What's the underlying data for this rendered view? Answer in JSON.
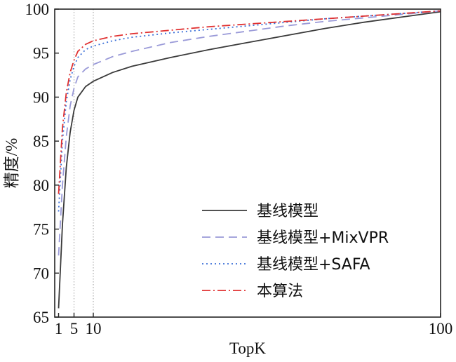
{
  "chart_data": {
    "type": "line",
    "xlabel": "TopK",
    "ylabel": "精度/%",
    "xlim": [
      0,
      100
    ],
    "ylim": [
      65,
      100
    ],
    "xticks": [
      1,
      5,
      10,
      100
    ],
    "yticks": [
      65,
      70,
      75,
      80,
      85,
      90,
      95,
      100
    ],
    "vlines": [
      5,
      10
    ],
    "grid": false,
    "legend_position": "bottom-right",
    "x": [
      1,
      2,
      3,
      4,
      5,
      6,
      8,
      10,
      15,
      20,
      30,
      40,
      50,
      60,
      70,
      80,
      90,
      100
    ],
    "series": [
      {
        "name": "基线模型",
        "color": "#3a3a3a",
        "dash": "solid",
        "values": [
          66.0,
          75.5,
          82.0,
          86.0,
          88.5,
          90.0,
          91.2,
          91.8,
          92.8,
          93.5,
          94.5,
          95.4,
          96.2,
          97.0,
          97.8,
          98.5,
          99.1,
          99.7
        ]
      },
      {
        "name": "基线模型+MixVPR",
        "color": "#9a9ad8",
        "dash": "dashed",
        "values": [
          72.0,
          80.0,
          85.5,
          89.0,
          91.0,
          92.3,
          93.2,
          93.7,
          94.6,
          95.2,
          96.2,
          96.9,
          97.5,
          98.1,
          98.6,
          99.0,
          99.4,
          99.8
        ]
      },
      {
        "name": "基线模型+SAFA",
        "color": "#3a6fd8",
        "dash": "dotted",
        "values": [
          77.0,
          85.0,
          89.5,
          92.0,
          93.5,
          94.5,
          95.4,
          95.8,
          96.4,
          96.8,
          97.3,
          97.7,
          98.1,
          98.5,
          98.9,
          99.2,
          99.5,
          99.8
        ]
      },
      {
        "name": "本算法",
        "color": "#e03030",
        "dash": "dashdot",
        "values": [
          79.0,
          86.5,
          90.5,
          92.8,
          94.2,
          95.2,
          96.0,
          96.4,
          96.9,
          97.2,
          97.6,
          98.0,
          98.3,
          98.6,
          98.9,
          99.2,
          99.5,
          99.8
        ]
      }
    ]
  }
}
